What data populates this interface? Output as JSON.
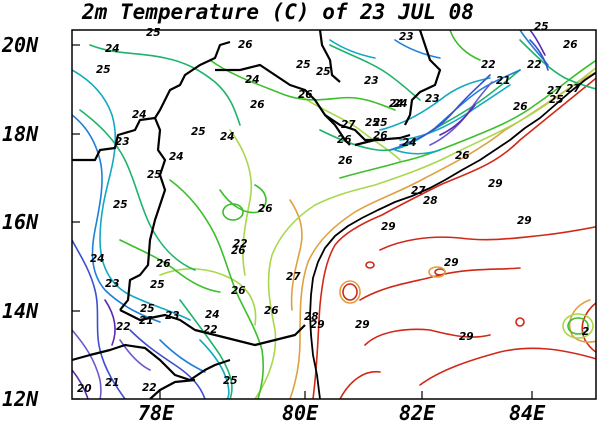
{
  "title": "2m Temperature (C) of 23 JUL 08",
  "lat_ticks": [
    "20N",
    "18N",
    "16N",
    "14N",
    "12N"
  ],
  "lon_ticks": [
    "78E",
    "80E",
    "82E",
    "84E"
  ],
  "contour_colors": {
    "20": "#5a2bb0",
    "21": "#6a5acd",
    "22": "#3c4fd0",
    "23": "#1f7fd8",
    "24": "#12a8c4",
    "25": "#1db36a",
    "26": "#3cbf2a",
    "27": "#a8d84a",
    "28": "#e0a040",
    "29": "#d02818"
  },
  "contour_labels": [
    {
      "text": "25"
    },
    {
      "text": "24"
    },
    {
      "text": "26"
    },
    {
      "text": "25"
    },
    {
      "text": "23"
    },
    {
      "text": "25"
    },
    {
      "text": "22"
    },
    {
      "text": "26"
    },
    {
      "text": "24"
    },
    {
      "text": "23"
    },
    {
      "text": "25"
    },
    {
      "text": "22"
    },
    {
      "text": "26"
    },
    {
      "text": "27"
    },
    {
      "text": "25"
    },
    {
      "text": "24"
    },
    {
      "text": "25"
    },
    {
      "text": "23"
    },
    {
      "text": "24"
    },
    {
      "text": "21"
    },
    {
      "text": "26"
    },
    {
      "text": "27"
    },
    {
      "text": "23"
    },
    {
      "text": "25"
    },
    {
      "text": "24"
    },
    {
      "text": "27"
    },
    {
      "text": "25"
    },
    {
      "text": "26"
    },
    {
      "text": "26"
    },
    {
      "text": "24"
    },
    {
      "text": "26"
    },
    {
      "text": "24"
    },
    {
      "text": "25"
    },
    {
      "text": "26"
    },
    {
      "text": "25"
    },
    {
      "text": "24"
    },
    {
      "text": "27"
    },
    {
      "text": "28"
    },
    {
      "text": "29"
    },
    {
      "text": "26"
    },
    {
      "text": "25"
    },
    {
      "text": "29"
    },
    {
      "text": "22"
    },
    {
      "text": "26"
    },
    {
      "text": "29"
    },
    {
      "text": "24"
    },
    {
      "text": "26"
    },
    {
      "text": "25"
    },
    {
      "text": "27"
    },
    {
      "text": "23"
    },
    {
      "text": "26"
    },
    {
      "text": "29"
    },
    {
      "text": "24"
    },
    {
      "text": "26"
    },
    {
      "text": "25"
    },
    {
      "text": "22"
    },
    {
      "text": "21"
    },
    {
      "text": "23"
    },
    {
      "text": "22"
    },
    {
      "text": "28"
    },
    {
      "text": "29"
    },
    {
      "text": "29"
    },
    {
      "text": "20"
    },
    {
      "text": "21"
    },
    {
      "text": "22"
    },
    {
      "text": "25"
    },
    {
      "text": "29"
    },
    {
      "text": "2"
    },
    {
      "text": "26"
    }
  ]
}
